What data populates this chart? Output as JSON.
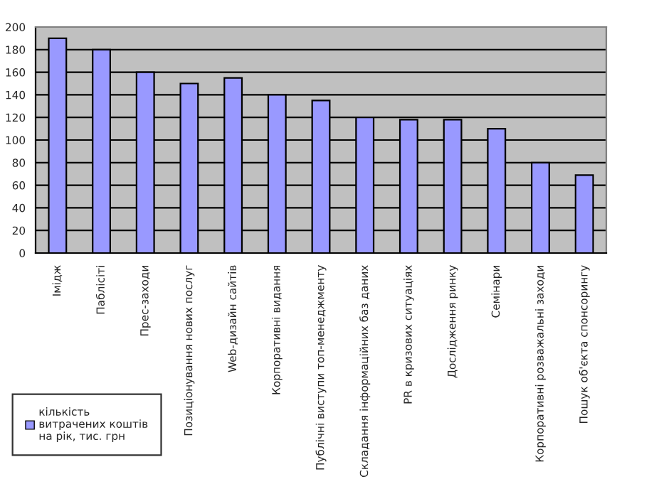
{
  "chart_data": {
    "type": "bar",
    "categories": [
      "Імідж",
      "Паблісіті",
      "Прес-заходи",
      "Позиціонування нових послуг",
      "Web-дизайн сайтів",
      "Корпоративні видання",
      "Публічні виступи топ-менеджменту",
      "Складання інформаційних баз даних",
      "PR в кризових ситуаціях",
      "Дослідження ринку",
      "Семінари",
      "Корпоративні розважальні заходи",
      "Пошук об'єкта спонсорингу"
    ],
    "series": [
      {
        "name": "кількість витрачених коштів на рік, тис. грн",
        "color": "#9999ff",
        "values": [
          190,
          180,
          160,
          150,
          155,
          140,
          135,
          120,
          118,
          118,
          110,
          80,
          69
        ]
      }
    ],
    "ylim": [
      0,
      200
    ],
    "yticks": [
      0,
      20,
      40,
      60,
      80,
      100,
      120,
      140,
      160,
      180,
      200
    ],
    "grid": "y",
    "legend": "bottom left"
  }
}
